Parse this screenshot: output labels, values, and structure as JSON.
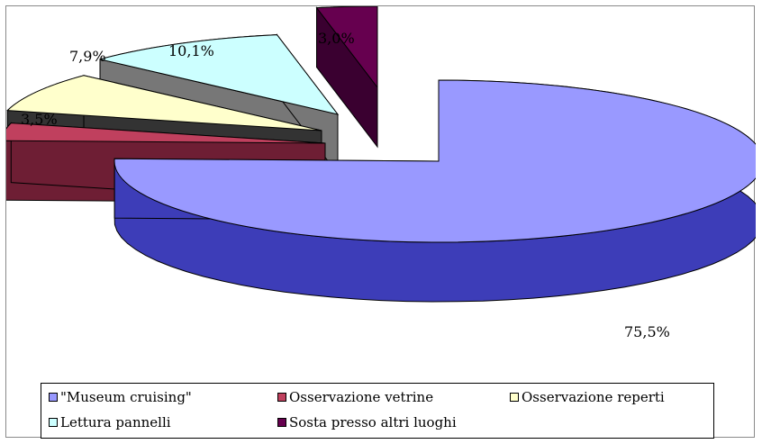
{
  "chart_data": {
    "type": "pie",
    "style": "3d-exploded",
    "slices": [
      {
        "label": "\"Museum cruising\"",
        "value": 75.5,
        "value_label": "75,5%",
        "color": "#9999ff",
        "side_color": "#3d3db8"
      },
      {
        "label": "Osservazione vetrine",
        "value": 3.5,
        "value_label": "3,5%",
        "color": "#c0405e",
        "side_color": "#6e1e34"
      },
      {
        "label": "Osservazione reperti",
        "value": 7.9,
        "value_label": "7,9%",
        "color": "#ffffcc",
        "side_color": "#333333"
      },
      {
        "label": "Lettura pannelli",
        "value": 10.1,
        "value_label": "10,1%",
        "color": "#ccffff",
        "side_color": "#777777"
      },
      {
        "label": "Sosta presso altri luoghi",
        "value": 3.0,
        "value_label": "3,0%",
        "color": "#66004f",
        "side_color": "#3a0030"
      }
    ],
    "legend_position": "bottom"
  }
}
